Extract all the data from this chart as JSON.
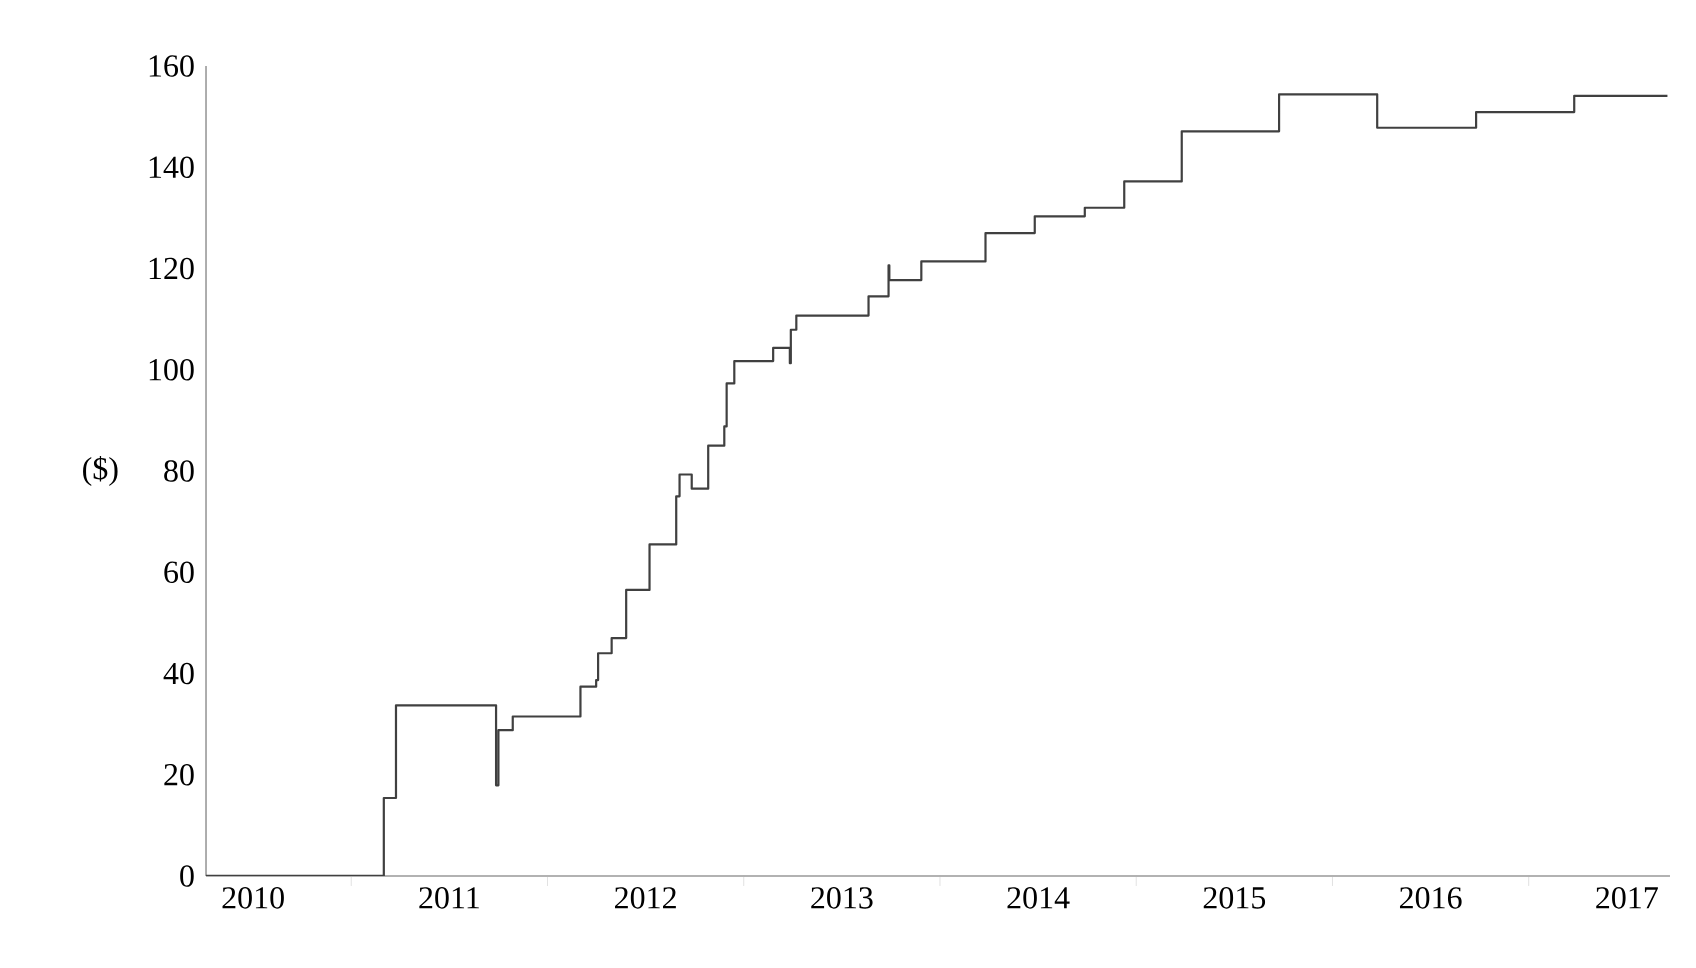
{
  "chart_data": {
    "type": "step",
    "ylabel": "($)",
    "x": [
      2010.26,
      2011.166,
      2011.228,
      2011.738,
      2011.75,
      2011.823,
      2012.168,
      2012.248,
      2012.258,
      2012.327,
      2012.401,
      2012.52,
      2012.656,
      2012.673,
      2012.735,
      2012.819,
      2012.901,
      2012.913,
      2012.952,
      2013.15,
      2013.235,
      2013.24,
      2013.268,
      2013.636,
      2013.738,
      2013.742,
      2013.905,
      2014.232,
      2014.483,
      2014.738,
      2014.939,
      2015.232,
      2015.728,
      2016.228,
      2016.732,
      2017.232,
      2017.707
    ],
    "series": [
      {
        "color": "#404040",
        "values": [
          0,
          15.4,
          33.7,
          17.9,
          28.8,
          31.5,
          37.4,
          38.7,
          44,
          47,
          56.5,
          65.5,
          75,
          79.3,
          76.5,
          85,
          88.8,
          97.3,
          101.7,
          104.3,
          101.3,
          107.9,
          110.7,
          114.5,
          120.6,
          117.7,
          121.4,
          127,
          130.3,
          132,
          137.2,
          147.1,
          154.4,
          147.8,
          150.9,
          154.1,
          154.1
        ]
      }
    ],
    "xlim": [
      2010.26,
      2017.72
    ],
    "ylim": [
      0,
      160
    ],
    "xticks": [
      {
        "value": 2010.5,
        "label": "2010"
      },
      {
        "value": 2011,
        "label": null
      },
      {
        "value": 2011.5,
        "label": "2011"
      },
      {
        "value": 2012,
        "label": null
      },
      {
        "value": 2012.5,
        "label": "2012"
      },
      {
        "value": 2013,
        "label": null
      },
      {
        "value": 2013.5,
        "label": "2013"
      },
      {
        "value": 2014,
        "label": null
      },
      {
        "value": 2014.5,
        "label": "2014"
      },
      {
        "value": 2015,
        "label": null
      },
      {
        "value": 2015.5,
        "label": "2015"
      },
      {
        "value": 2016,
        "label": null
      },
      {
        "value": 2016.5,
        "label": "2016"
      },
      {
        "value": 2017,
        "label": null
      },
      {
        "value": 2017.5,
        "label": "2017"
      }
    ],
    "yticks": [
      0,
      20,
      40,
      60,
      80,
      100,
      120,
      140,
      160
    ]
  }
}
